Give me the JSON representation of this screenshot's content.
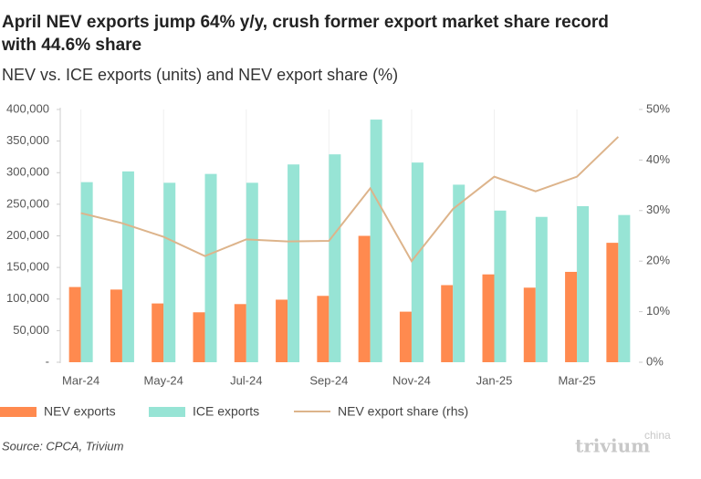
{
  "chart_data": {
    "type": "bar-line",
    "title": [
      "April NEV exports jump 64% y/y, crush former export market share record",
      "with 44.6% share"
    ],
    "subtitle": "NEV vs. ICE exports (units) and NEV export share (%)",
    "categories": [
      "Mar-24",
      null,
      "May-24",
      null,
      "Jul-24",
      null,
      "Sep-24",
      null,
      "Nov-24",
      null,
      "Jan-25",
      null,
      "Mar-25",
      null
    ],
    "series": [
      {
        "name": "NEV exports",
        "color": "#ff8a4f",
        "kind": "bar",
        "values": [
          119000,
          115000,
          93000,
          79000,
          92000,
          99000,
          105000,
          200000,
          80000,
          122000,
          139000,
          118000,
          143000,
          189000
        ]
      },
      {
        "name": "ICE exports",
        "color": "#97e4d5",
        "kind": "bar",
        "values": [
          285000,
          302000,
          284000,
          298000,
          284000,
          313000,
          329000,
          384000,
          316000,
          281000,
          240000,
          230000,
          247000,
          233000
        ]
      },
      {
        "name": "NEV export share (rhs)",
        "color": "#ddb48b",
        "kind": "line",
        "axis": "y2",
        "values": [
          29.5,
          27.5,
          24.8,
          21.0,
          24.3,
          23.9,
          24.0,
          34.4,
          20.0,
          30.3,
          36.7,
          33.8,
          36.7,
          44.6
        ]
      }
    ],
    "ylim": [
      0,
      400000
    ],
    "yticks": [
      {
        "value": 0,
        "label": "-"
      },
      {
        "value": 50000,
        "label": "50,000"
      },
      {
        "value": 100000,
        "label": "100,000"
      },
      {
        "value": 150000,
        "label": "150,000"
      },
      {
        "value": 200000,
        "label": "200,000"
      },
      {
        "value": 250000,
        "label": "250,000"
      },
      {
        "value": 300000,
        "label": "300,000"
      },
      {
        "value": 350000,
        "label": "350,000"
      },
      {
        "value": 400000,
        "label": "400,000"
      }
    ],
    "y2lim": [
      0,
      50
    ],
    "y2ticks": [
      {
        "value": 0,
        "label": "0%"
      },
      {
        "value": 10,
        "label": "10%"
      },
      {
        "value": 20,
        "label": "20%"
      },
      {
        "value": 30,
        "label": "30%"
      },
      {
        "value": 40,
        "label": "40%"
      },
      {
        "value": 50,
        "label": "50%"
      }
    ],
    "source": "Source: CPCA, Trivium",
    "logo": {
      "text": "trivium",
      "sup": "china"
    }
  }
}
